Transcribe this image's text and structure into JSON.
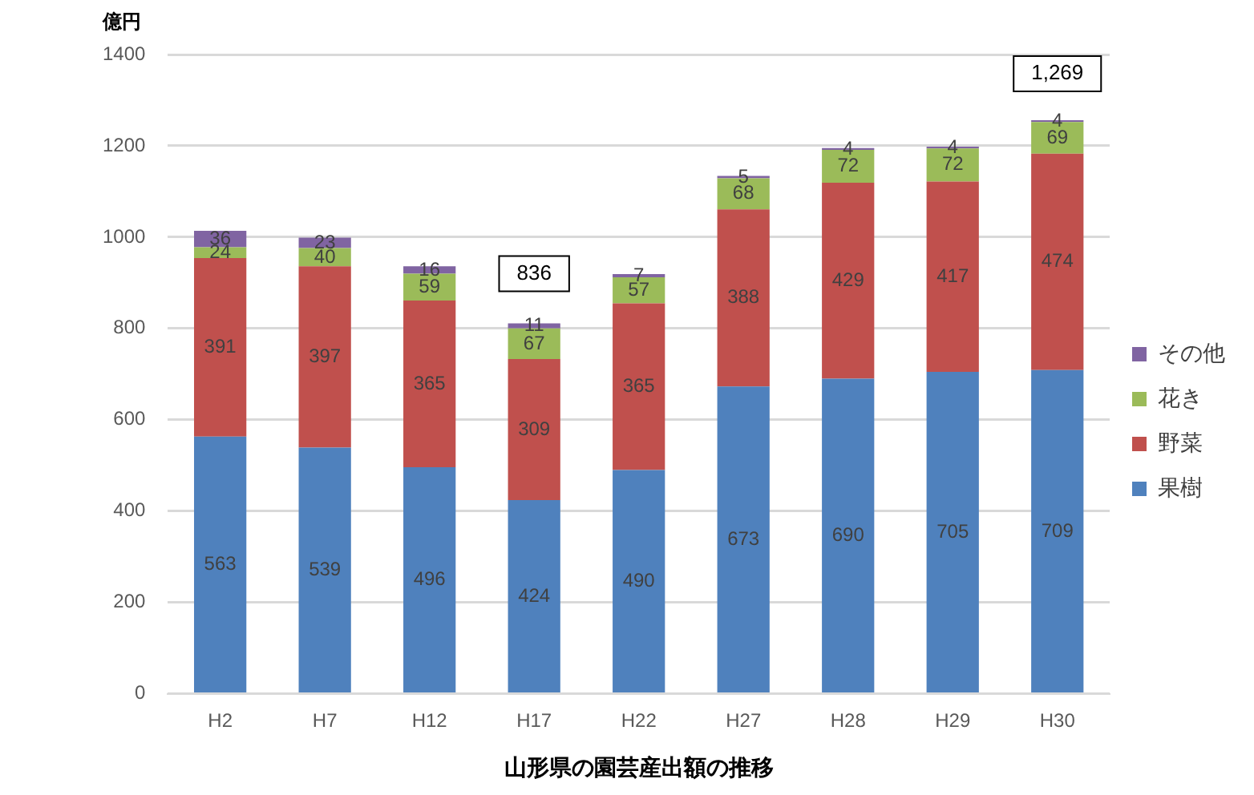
{
  "chart_data": {
    "type": "bar",
    "stacked": true,
    "xlabel": "山形県の園芸産出額の推移",
    "ylabel": "億円",
    "categories": [
      "H2",
      "H7",
      "H12",
      "H17",
      "H22",
      "H27",
      "H28",
      "H29",
      "H30"
    ],
    "series": [
      {
        "name": "果樹",
        "color": "#4f81bd",
        "values": [
          563,
          539,
          496,
          424,
          490,
          673,
          690,
          705,
          709
        ]
      },
      {
        "name": "野菜",
        "color": "#c0504d",
        "values": [
          391,
          397,
          365,
          309,
          365,
          388,
          429,
          417,
          474
        ]
      },
      {
        "name": "花き",
        "color": "#9bbb59",
        "values": [
          24,
          40,
          59,
          67,
          57,
          68,
          72,
          72,
          69
        ]
      },
      {
        "name": "その他",
        "color": "#8064a2",
        "values": [
          36,
          23,
          16,
          11,
          7,
          5,
          4,
          4,
          4
        ]
      }
    ],
    "annotations": [
      "836",
      "1,269"
    ],
    "ylim": [
      0,
      1400
    ],
    "yticks": [
      0,
      200,
      400,
      600,
      800,
      1000,
      1200,
      1400
    ],
    "grid": "y",
    "legend": "right",
    "data_labels": true
  }
}
